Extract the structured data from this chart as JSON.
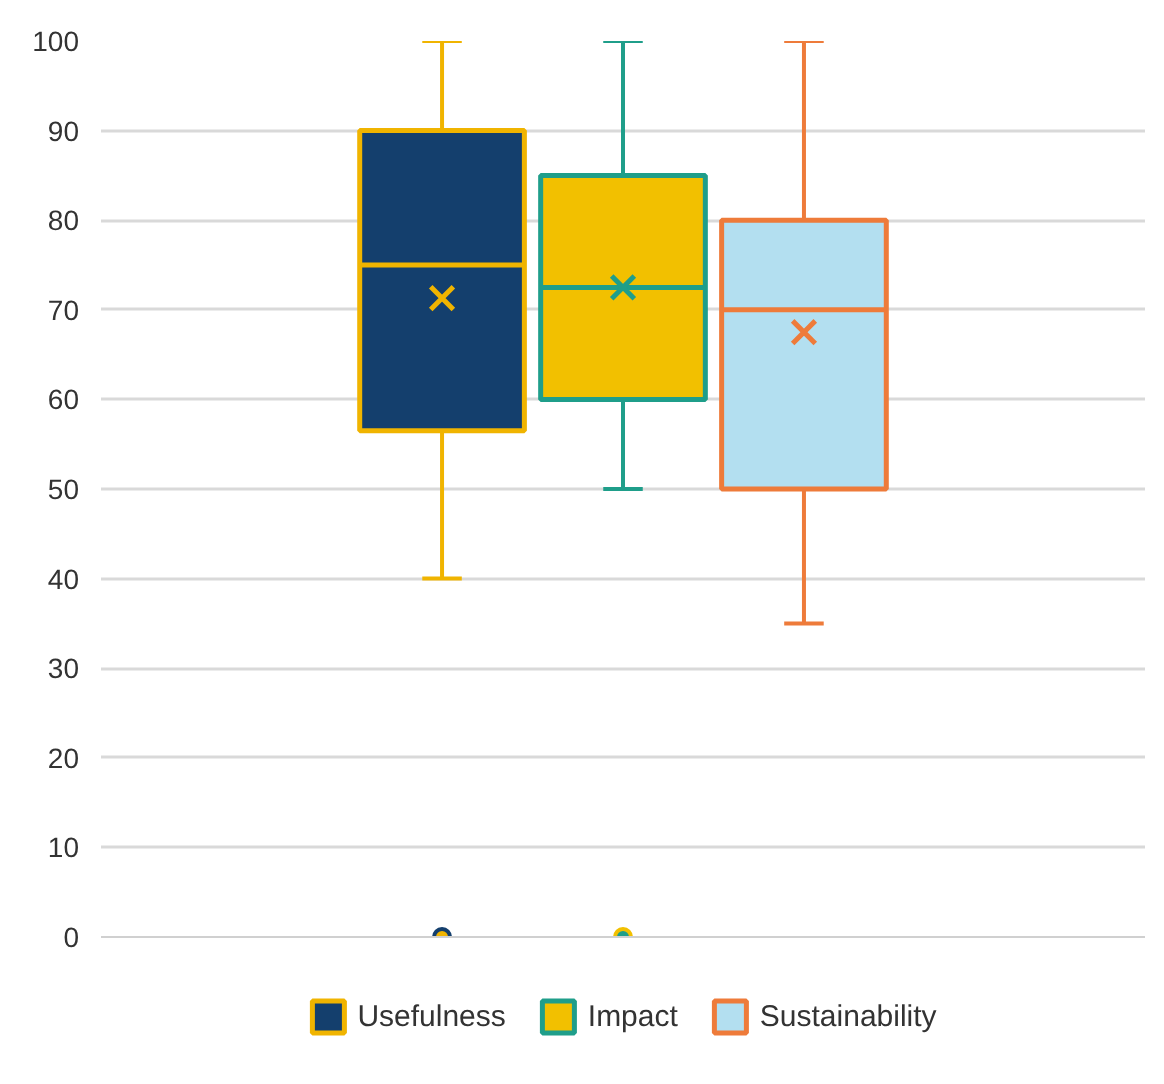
{
  "chart_data": {
    "type": "box",
    "categories": [
      null
    ],
    "ylim": [
      0,
      100
    ],
    "yticks": [
      0,
      10,
      20,
      30,
      40,
      50,
      60,
      70,
      80,
      90,
      100
    ],
    "grid": "y",
    "legend": "bottom",
    "series": [
      {
        "name": "Usefulness",
        "color": "#143f6d",
        "boxes": [
          {
            "low": 40,
            "q1": 56.5,
            "median": 75,
            "q3": 90,
            "high": 100,
            "mean": 71.3,
            "outliers": [
              0
            ]
          }
        ]
      },
      {
        "name": "Impact",
        "color": "#f2c000",
        "boxes": [
          {
            "low": 50,
            "q1": 60,
            "median": 72.5,
            "q3": 85,
            "high": 100,
            "mean": 72.5,
            "outliers": [
              0
            ]
          }
        ]
      },
      {
        "name": "Sustainability",
        "color": "#b3dff0",
        "boxes": [
          {
            "low": 35,
            "q1": 50,
            "median": 70,
            "q3": 80,
            "high": 100,
            "mean": 67.5
          }
        ]
      }
    ]
  }
}
